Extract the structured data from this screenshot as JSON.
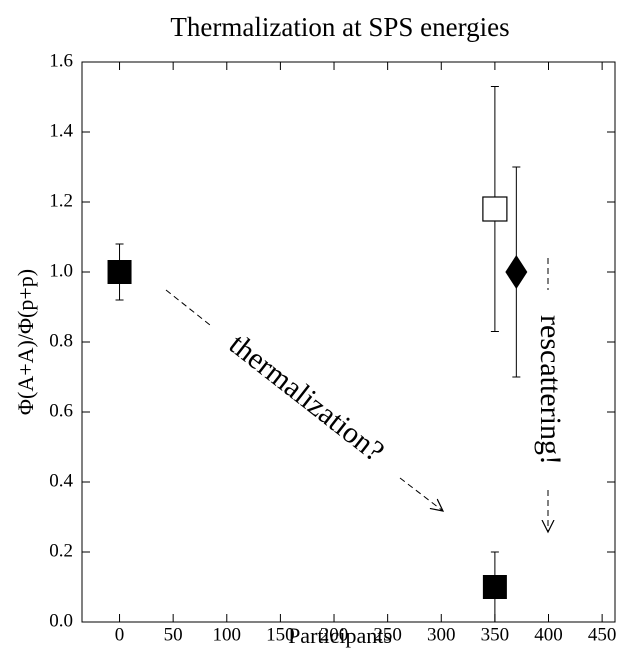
{
  "chart_data": {
    "type": "scatter",
    "title": "Thermalization at SPS energies",
    "x_label": "Participants",
    "y_label": "Φ(A+A)/Φ(p+p)",
    "annotations": [
      "thermalization?",
      "rescattering!"
    ],
    "color": "#000000",
    "series": [
      {
        "marker": "filled-square",
        "x": [
          0,
          350
        ],
        "values": [
          1.0,
          0.1
        ],
        "errors": [
          0.08,
          0.1
        ]
      },
      {
        "marker": "open-square",
        "x": [
          350
        ],
        "values": [
          1.18
        ],
        "errors": [
          0.35
        ]
      },
      {
        "marker": "diamond",
        "x": [
          370
        ],
        "values": [
          1.0
        ],
        "errors": [
          0.3
        ]
      }
    ],
    "xlim": [
      -35,
      462
    ],
    "xticks": [
      0,
      50,
      100,
      150,
      200,
      250,
      300,
      350,
      400,
      450
    ],
    "ylim": [
      0,
      1.6
    ],
    "yticks": [
      {
        "value": 0,
        "label": "0.0"
      },
      0.2,
      0.4,
      0.6,
      0.8,
      {
        "value": 1,
        "label": "1.0"
      },
      1.2,
      1.4,
      1.6
    ]
  }
}
